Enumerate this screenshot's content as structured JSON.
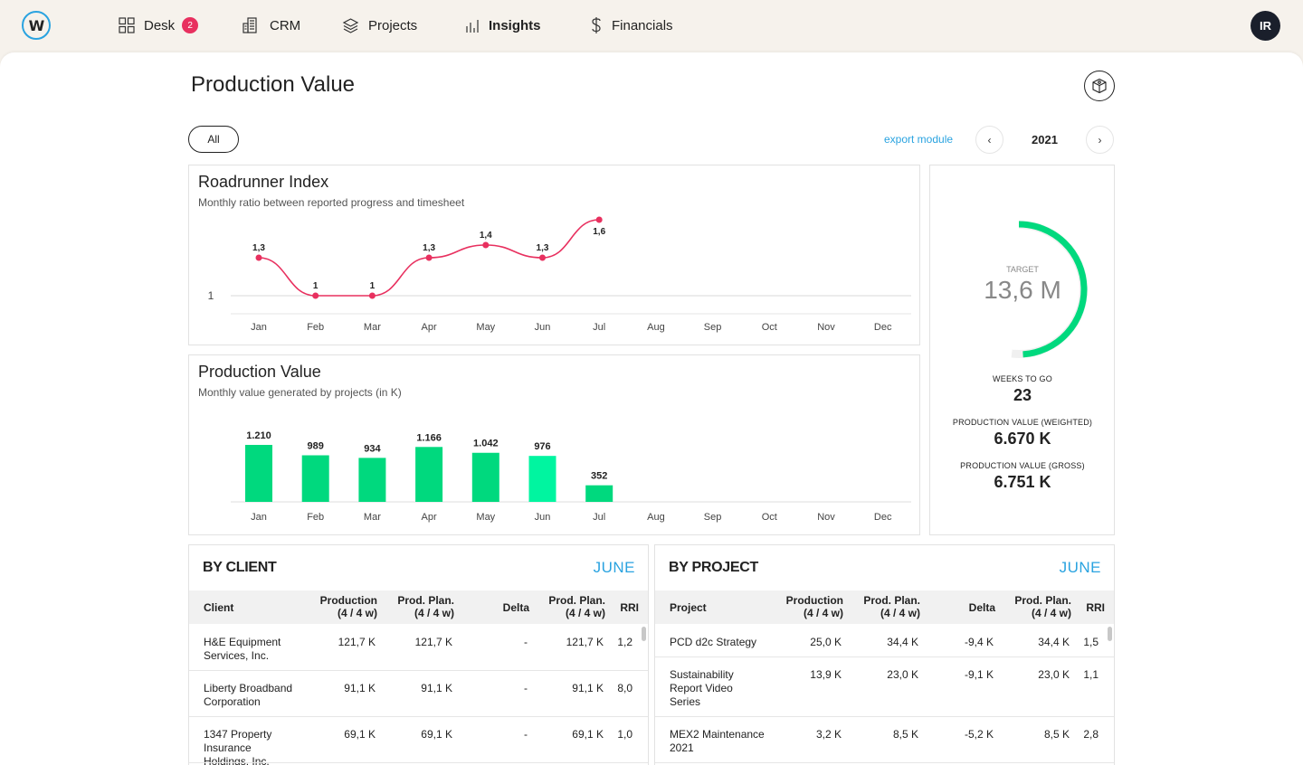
{
  "nav": {
    "logo_letter": "W",
    "items": [
      {
        "label": "Desk",
        "badge": "2"
      },
      {
        "label": "CRM"
      },
      {
        "label": "Projects"
      },
      {
        "label": "Insights"
      },
      {
        "label": "Financials"
      }
    ],
    "avatar_initials": "IR"
  },
  "page": {
    "title": "Production Value",
    "filter_label": "All",
    "export_label": "export module",
    "year": "2021",
    "prev_icon": "‹",
    "next_icon": "›"
  },
  "colors": {
    "accent": "#2aa3e0",
    "line": "#e8305f",
    "bar": "#00d97e",
    "bar_highlight": "#00f5a0",
    "gauge": "#00d97e"
  },
  "chart_data": [
    {
      "type": "line",
      "title": "Roadrunner Index",
      "subtitle": "Monthly ratio between reported progress and timesheet",
      "categories": [
        "Jan",
        "Feb",
        "Mar",
        "Apr",
        "May",
        "Jun",
        "Jul",
        "Aug",
        "Sep",
        "Oct",
        "Nov",
        "Dec"
      ],
      "values": [
        1.3,
        1,
        1,
        1.3,
        1.4,
        1.3,
        1.6
      ],
      "labels": [
        "1,3",
        "1",
        "1",
        "1,3",
        "1,4",
        "1,3",
        "1,6"
      ],
      "reference_line": 1,
      "reference_label": "1",
      "ylim": [
        0.9,
        1.7
      ]
    },
    {
      "type": "bar",
      "title": "Production Value",
      "subtitle": "Monthly value generated by projects (in K)",
      "categories": [
        "Jan",
        "Feb",
        "Mar",
        "Apr",
        "May",
        "Jun",
        "Jul",
        "Aug",
        "Sep",
        "Oct",
        "Nov",
        "Dec"
      ],
      "values": [
        1210,
        989,
        934,
        1166,
        1042,
        976,
        352
      ],
      "labels": [
        "1.210",
        "989",
        "934",
        "1.166",
        "1.042",
        "976",
        "352"
      ],
      "highlight_index": 5,
      "ylim": [
        0,
        1300
      ]
    }
  ],
  "summary": {
    "target_label": "TARGET",
    "target_value": "13,6 M",
    "progress_fraction": 0.49,
    "weeks_label": "WEEKS TO GO",
    "weeks_value": "23",
    "weighted_label": "PRODUCTION VALUE (WEIGHTED)",
    "weighted_value": "6.670 K",
    "gross_label": "PRODUCTION VALUE (GROSS)",
    "gross_value": "6.751 K"
  },
  "by_client": {
    "title": "BY CLIENT",
    "month": "JUNE",
    "columns": {
      "name": "Client",
      "production": [
        "Production",
        "(4 / 4 w)"
      ],
      "plan": [
        "Prod. Plan.",
        "(4 / 4 w)"
      ],
      "delta": "Delta",
      "plan2": [
        "Prod. Plan.",
        "(4 / 4 w)"
      ],
      "rri": "RRI"
    },
    "rows": [
      {
        "name": [
          "H&E Equipment",
          "Services, Inc."
        ],
        "production": "121,7 K",
        "plan": "121,7 K",
        "delta": "-",
        "plan2": "121,7 K",
        "rri": "1,2"
      },
      {
        "name": [
          "Liberty Broadband",
          "Corporation"
        ],
        "production": "91,1 K",
        "plan": "91,1 K",
        "delta": "-",
        "plan2": "91,1 K",
        "rri": "8,0"
      },
      {
        "name": [
          "1347 Property",
          "Insurance",
          "Holdings, Inc."
        ],
        "production": "69,1 K",
        "plan": "69,1 K",
        "delta": "-",
        "plan2": "69,1 K",
        "rri": "1,0"
      }
    ]
  },
  "by_project": {
    "title": "BY PROJECT",
    "month": "JUNE",
    "columns": {
      "name": "Project",
      "production": [
        "Production",
        "(4 / 4 w)"
      ],
      "plan": [
        "Prod. Plan.",
        "(4 / 4 w)"
      ],
      "delta": "Delta",
      "plan2": [
        "Prod. Plan.",
        "(4 / 4 w)"
      ],
      "rri": "RRI"
    },
    "rows": [
      {
        "name": [
          "PCD d2c Strategy"
        ],
        "production": "25,0 K",
        "plan": "34,4 K",
        "delta": "-9,4 K",
        "plan2": "34,4 K",
        "rri": "1,5"
      },
      {
        "name": [
          "Sustainability",
          "Report Video",
          "Series"
        ],
        "production": "13,9 K",
        "plan": "23,0 K",
        "delta": "-9,1 K",
        "plan2": "23,0 K",
        "rri": "1,1"
      },
      {
        "name": [
          "MEX2 Maintenance",
          "2021"
        ],
        "production": "3,2 K",
        "plan": "8,5 K",
        "delta": "-5,2 K",
        "plan2": "8,5 K",
        "rri": "2,8"
      }
    ]
  }
}
